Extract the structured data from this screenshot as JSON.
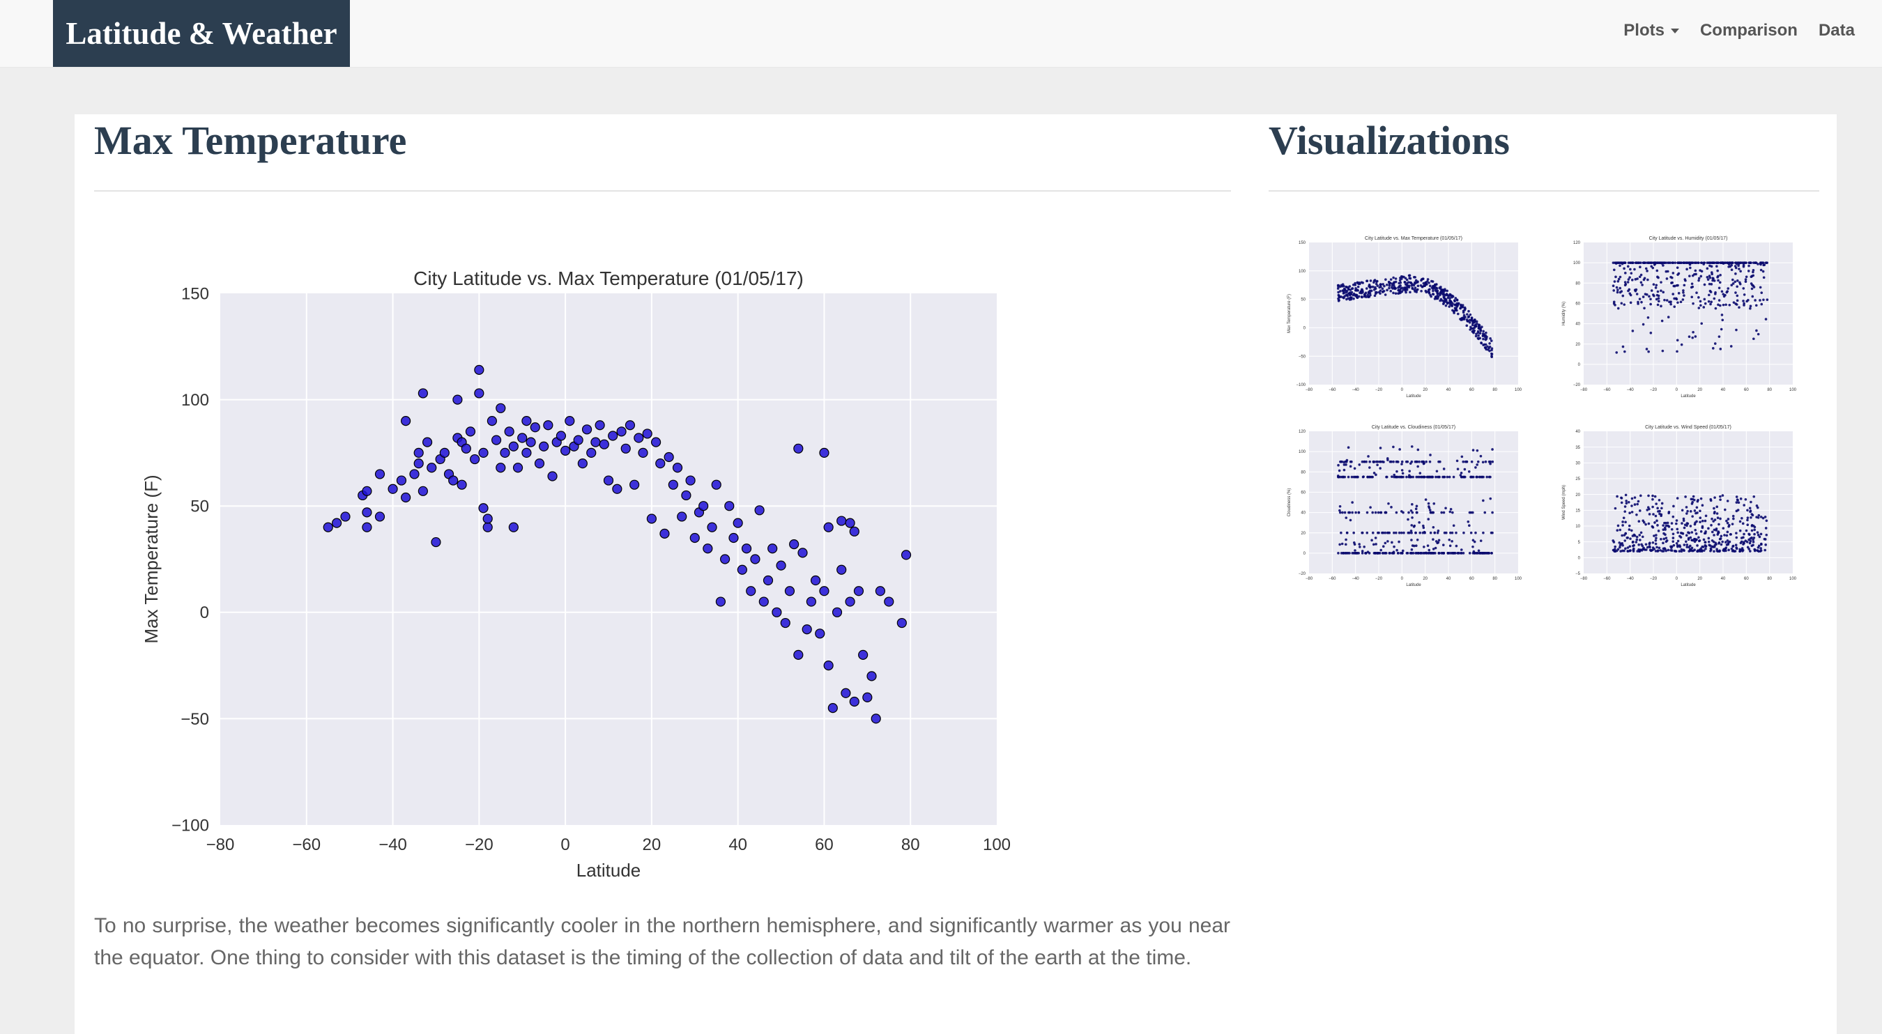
{
  "navbar": {
    "brand": "Latitude & Weather",
    "items": [
      {
        "label": "Plots",
        "dropdown": true
      },
      {
        "label": "Comparison",
        "dropdown": false
      },
      {
        "label": "Data",
        "dropdown": false
      }
    ]
  },
  "main": {
    "title": "Max Temperature",
    "description": "To no surprise, the weather becomes significantly cooler in the northern hemisphere, and significantly warmer as you near the equator. One thing to consider with this dataset is the timing of the collection of data and tilt of the earth at the time."
  },
  "sidebar": {
    "title": "Visualizations"
  },
  "colors": {
    "brand_bg": "#2c3e50",
    "plot_bg": "#eaeaf2",
    "marker": "#1f10d6",
    "marker_edge": "#000000",
    "thumb_marker": "#0a0a6e"
  },
  "chart_data": [
    {
      "type": "scatter",
      "title": "City Latitude vs. Max Temperature (01/05/17)",
      "xlabel": "Latitude",
      "ylabel": "Max Temperature (F)",
      "xlim": [
        -80,
        100
      ],
      "ylim": [
        -100,
        150
      ],
      "xticks": [
        -80,
        -60,
        -40,
        -20,
        0,
        20,
        40,
        60,
        80,
        100
      ],
      "yticks": [
        -100,
        -50,
        0,
        50,
        100,
        150
      ],
      "grid": true,
      "points": [
        [
          -55,
          40
        ],
        [
          -53,
          42
        ],
        [
          -51,
          45
        ],
        [
          -47,
          55
        ],
        [
          -46,
          57
        ],
        [
          -46,
          47
        ],
        [
          -46,
          40
        ],
        [
          -43,
          65
        ],
        [
          -43,
          45
        ],
        [
          -40,
          58
        ],
        [
          -38,
          62
        ],
        [
          -37,
          54
        ],
        [
          -37,
          90
        ],
        [
          -35,
          65
        ],
        [
          -34,
          75
        ],
        [
          -34,
          70
        ],
        [
          -33,
          103
        ],
        [
          -33,
          57
        ],
        [
          -32,
          80
        ],
        [
          -31,
          68
        ],
        [
          -30,
          33
        ],
        [
          -29,
          72
        ],
        [
          -28,
          75
        ],
        [
          -27,
          65
        ],
        [
          -26,
          62
        ],
        [
          -25,
          82
        ],
        [
          -25,
          100
        ],
        [
          -24,
          80
        ],
        [
          -24,
          60
        ],
        [
          -23,
          77
        ],
        [
          -22,
          85
        ],
        [
          -21,
          72
        ],
        [
          -20,
          114
        ],
        [
          -20,
          103
        ],
        [
          -19,
          75
        ],
        [
          -19,
          49
        ],
        [
          -18,
          40
        ],
        [
          -18,
          44
        ],
        [
          -17,
          90
        ],
        [
          -16,
          81
        ],
        [
          -15,
          96
        ],
        [
          -15,
          68
        ],
        [
          -14,
          75
        ],
        [
          -13,
          85
        ],
        [
          -12,
          78
        ],
        [
          -12,
          40
        ],
        [
          -11,
          68
        ],
        [
          -10,
          82
        ],
        [
          -9,
          75
        ],
        [
          -9,
          90
        ],
        [
          -8,
          80
        ],
        [
          -7,
          87
        ],
        [
          -6,
          70
        ],
        [
          -5,
          78
        ],
        [
          -4,
          88
        ],
        [
          -3,
          64
        ],
        [
          -2,
          80
        ],
        [
          -1,
          83
        ],
        [
          0,
          76
        ],
        [
          1,
          90
        ],
        [
          2,
          78
        ],
        [
          3,
          81
        ],
        [
          4,
          70
        ],
        [
          5,
          86
        ],
        [
          6,
          75
        ],
        [
          7,
          80
        ],
        [
          8,
          88
        ],
        [
          9,
          79
        ],
        [
          10,
          62
        ],
        [
          11,
          83
        ],
        [
          12,
          58
        ],
        [
          13,
          85
        ],
        [
          14,
          77
        ],
        [
          15,
          88
        ],
        [
          16,
          60
        ],
        [
          17,
          82
        ],
        [
          18,
          75
        ],
        [
          19,
          84
        ],
        [
          20,
          44
        ],
        [
          21,
          80
        ],
        [
          22,
          70
        ],
        [
          23,
          37
        ],
        [
          24,
          73
        ],
        [
          25,
          60
        ],
        [
          26,
          68
        ],
        [
          27,
          45
        ],
        [
          28,
          55
        ],
        [
          29,
          62
        ],
        [
          30,
          35
        ],
        [
          31,
          47
        ],
        [
          32,
          50
        ],
        [
          33,
          30
        ],
        [
          34,
          40
        ],
        [
          35,
          60
        ],
        [
          36,
          5
        ],
        [
          37,
          25
        ],
        [
          38,
          50
        ],
        [
          39,
          35
        ],
        [
          40,
          42
        ],
        [
          41,
          20
        ],
        [
          42,
          30
        ],
        [
          43,
          10
        ],
        [
          44,
          25
        ],
        [
          45,
          48
        ],
        [
          46,
          5
        ],
        [
          47,
          15
        ],
        [
          48,
          30
        ],
        [
          49,
          0
        ],
        [
          50,
          22
        ],
        [
          51,
          -5
        ],
        [
          52,
          10
        ],
        [
          53,
          32
        ],
        [
          54,
          -20
        ],
        [
          55,
          28
        ],
        [
          56,
          -8
        ],
        [
          57,
          5
        ],
        [
          58,
          15
        ],
        [
          59,
          -10
        ],
        [
          60,
          10
        ],
        [
          61,
          -25
        ],
        [
          62,
          -45
        ],
        [
          63,
          0
        ],
        [
          64,
          20
        ],
        [
          65,
          -38
        ],
        [
          66,
          5
        ],
        [
          67,
          -42
        ],
        [
          68,
          10
        ],
        [
          69,
          -20
        ],
        [
          70,
          -40
        ],
        [
          71,
          -30
        ],
        [
          72,
          -50
        ],
        [
          73,
          10
        ],
        [
          75,
          5
        ],
        [
          78,
          -5
        ],
        [
          79,
          27
        ],
        [
          54,
          77
        ],
        [
          60,
          75
        ],
        [
          61,
          40
        ],
        [
          64,
          43
        ],
        [
          66,
          42
        ],
        [
          67,
          38
        ]
      ]
    },
    {
      "type": "scatter",
      "title": "City Latitude vs. Max Temperature (01/05/17)",
      "xlabel": "Latitude",
      "ylabel": "Max Temperature (F)",
      "xlim": [
        -80,
        100
      ],
      "ylim": [
        -100,
        150
      ],
      "xticks": [
        -80,
        -60,
        -40,
        -20,
        0,
        20,
        40,
        60,
        80,
        100
      ],
      "yticks": [
        -100,
        -50,
        0,
        50,
        100,
        150
      ]
    },
    {
      "type": "scatter",
      "title": "City Latitude vs. Humidity (01/05/17)",
      "xlabel": "Latitude",
      "ylabel": "Humidity (%)",
      "xlim": [
        -80,
        100
      ],
      "ylim": [
        -20,
        120
      ],
      "xticks": [
        -80,
        -60,
        -40,
        -20,
        0,
        20,
        40,
        60,
        80,
        100
      ],
      "yticks": [
        -20,
        0,
        20,
        40,
        60,
        80,
        100,
        120
      ]
    },
    {
      "type": "scatter",
      "title": "City Latitude vs. Cloudiness (01/05/17)",
      "xlabel": "Latitude",
      "ylabel": "Cloudiness (%)",
      "xlim": [
        -80,
        100
      ],
      "ylim": [
        -20,
        120
      ],
      "xticks": [
        -80,
        -60,
        -40,
        -20,
        0,
        20,
        40,
        60,
        80,
        100
      ],
      "yticks": [
        -20,
        0,
        20,
        40,
        60,
        80,
        100,
        120
      ]
    },
    {
      "type": "scatter",
      "title": "City Latitude vs. Wind Speed (01/05/17)",
      "xlabel": "Latitude",
      "ylabel": "Wind Speed (mph)",
      "xlim": [
        -80,
        100
      ],
      "ylim": [
        -5,
        40
      ],
      "xticks": [
        -80,
        -60,
        -40,
        -20,
        0,
        20,
        40,
        60,
        80,
        100
      ],
      "yticks": [
        -5,
        0,
        5,
        10,
        15,
        20,
        25,
        30,
        35,
        40
      ]
    }
  ]
}
